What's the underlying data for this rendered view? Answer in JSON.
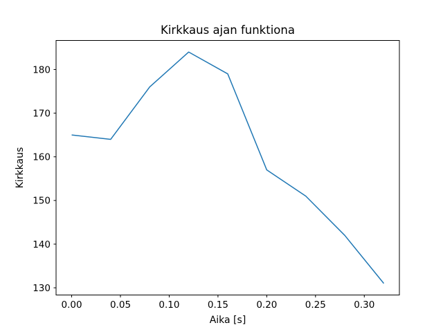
{
  "figure": {
    "background": "#ffffff"
  },
  "chart_data": {
    "type": "line",
    "title": "Kirkkaus ajan funktiona",
    "xlabel": "Aika [s]",
    "ylabel": "Kirkkaus",
    "x": [
      0.0,
      0.04,
      0.08,
      0.12,
      0.16,
      0.2,
      0.24,
      0.28,
      0.32
    ],
    "y": [
      165,
      164,
      176,
      184,
      179,
      157,
      151,
      142,
      131
    ],
    "xlim": [
      -0.016,
      0.336
    ],
    "ylim": [
      128.35,
      186.65
    ],
    "xticks": {
      "values": [
        0.0,
        0.05,
        0.1,
        0.15,
        0.2,
        0.25,
        0.3
      ],
      "labels": [
        "0.00",
        "0.05",
        "0.10",
        "0.15",
        "0.20",
        "0.25",
        "0.30"
      ]
    },
    "yticks": {
      "values": [
        130,
        140,
        150,
        160,
        170,
        180
      ],
      "labels": [
        "130",
        "140",
        "150",
        "160",
        "170",
        "180"
      ]
    },
    "grid": false,
    "legend": null,
    "line_color": "#1f77b4",
    "line_width": 1.5,
    "text_color": "#000000",
    "spine_color": "#000000",
    "plot_background": "#ffffff"
  }
}
